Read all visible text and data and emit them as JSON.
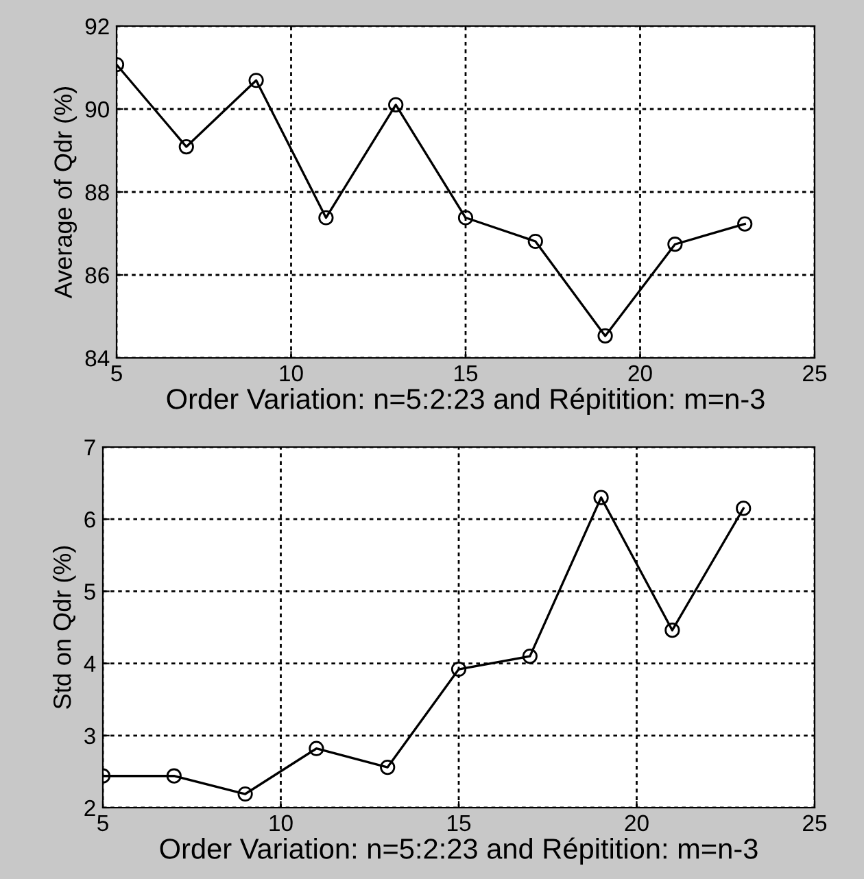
{
  "chart_data": [
    {
      "type": "line",
      "xlabel": "Order Variation: n=5:2:23 and Répitition: m=n-3",
      "ylabel": "Average of Qdr (%)",
      "x": [
        5,
        7,
        9,
        11,
        13,
        15,
        17,
        19,
        21,
        23
      ],
      "series": [
        {
          "color": "#000000",
          "values": [
            91.07,
            89.09,
            90.69,
            87.38,
            90.1,
            87.38,
            86.81,
            84.53,
            86.74,
            87.23
          ]
        }
      ],
      "xlim": [
        5,
        25
      ],
      "xticks": [
        5,
        10,
        15,
        20,
        25
      ],
      "ylim": [
        84,
        92
      ],
      "yticks": [
        84,
        86,
        88,
        90,
        92
      ],
      "grid": true,
      "marker": "circle",
      "line_style": "solid"
    },
    {
      "type": "line",
      "xlabel": "Order Variation: n=5:2:23 and Répitition: m=n-3",
      "ylabel": "Std on Qdr (%)",
      "x": [
        5,
        7,
        9,
        11,
        13,
        15,
        17,
        19,
        21,
        23
      ],
      "series": [
        {
          "color": "#000000",
          "values": [
            2.44,
            2.44,
            2.19,
            2.82,
            2.56,
            3.92,
            4.1,
            6.3,
            4.46,
            6.15
          ]
        }
      ],
      "xlim": [
        5,
        25
      ],
      "xticks": [
        5,
        10,
        15,
        20,
        25
      ],
      "ylim": [
        2,
        7
      ],
      "yticks": [
        2,
        3,
        4,
        5,
        6,
        7
      ],
      "grid": true,
      "marker": "circle",
      "line_style": "solid"
    }
  ]
}
